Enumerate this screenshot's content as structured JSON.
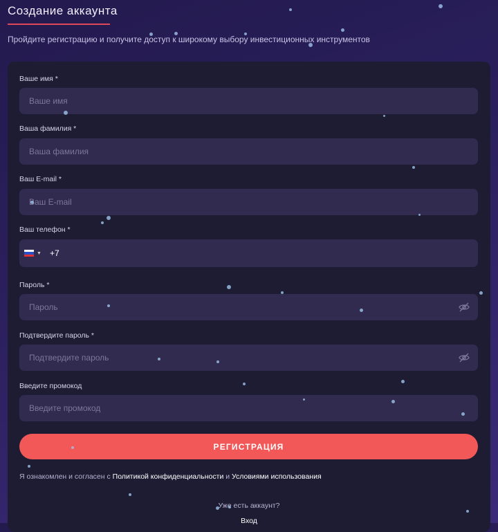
{
  "header": {
    "title": "Создание аккаунта",
    "subtitle": "Пройдите регистрацию и получите доступ к широкому выбору инвестиционных инструментов"
  },
  "form": {
    "first_name": {
      "label": "Ваше имя *",
      "placeholder": "Ваше имя"
    },
    "last_name": {
      "label": "Ваша фамилия *",
      "placeholder": "Ваша фамилия"
    },
    "email": {
      "label": "Ваш E-mail *",
      "placeholder": "Ваш E-mail"
    },
    "phone": {
      "label": "Ваш телефон *",
      "value": "+7",
      "country_flag": "ru-flag-icon"
    },
    "password": {
      "label": "Пароль *",
      "placeholder": "Пароль",
      "icon": "eye-off-icon"
    },
    "confirm_password": {
      "label": "Подтвердите пароль *",
      "placeholder": "Подтвердите пароль",
      "icon": "eye-off-icon"
    },
    "promo": {
      "label": "Введите промокод",
      "placeholder": "Введите промокод"
    },
    "submit_label": "РЕГИСТРАЦИЯ",
    "terms": {
      "prefix": "Я ознакомлен и согласен с ",
      "privacy_link": "Политикой конфиденциальности",
      "middle": " и ",
      "terms_link": "Условиями использования"
    },
    "have_account": "Уже есть аккаунт?",
    "login_link": "Вход"
  },
  "colors": {
    "accent": "#f25858",
    "underline": "#e0485a",
    "card": "#1d1c33",
    "input": "#312b4f"
  }
}
